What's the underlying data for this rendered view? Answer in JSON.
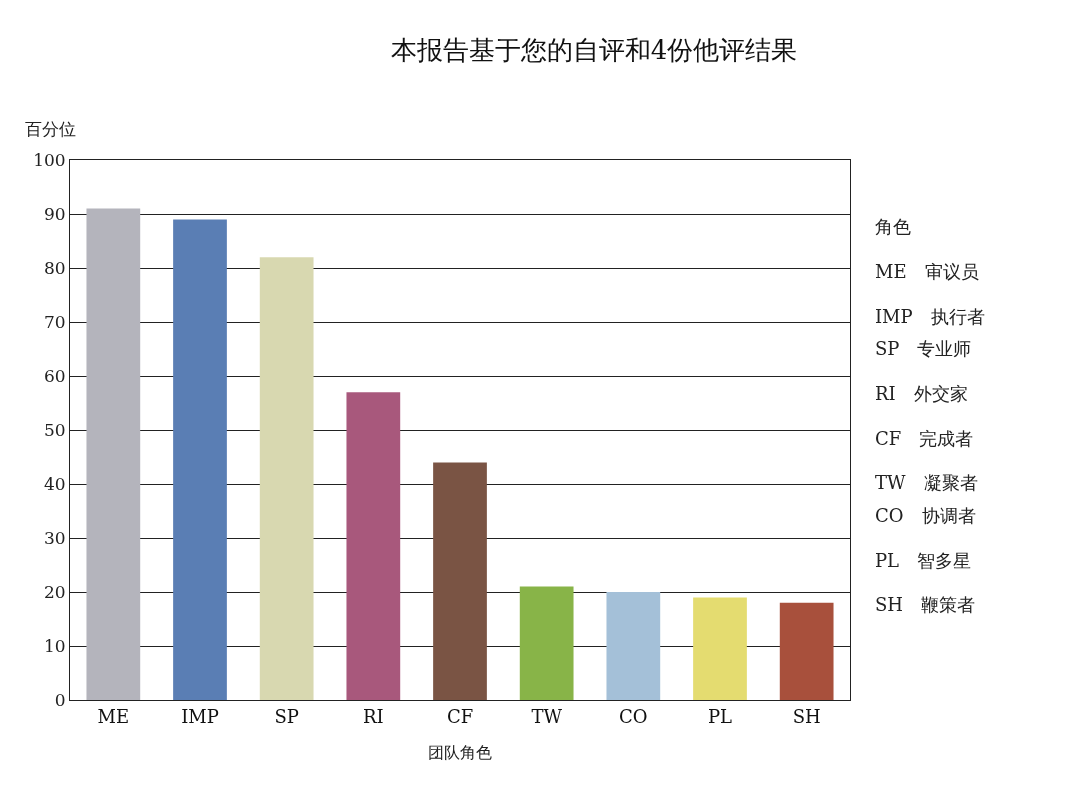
{
  "chart_data": {
    "type": "bar",
    "title": "本报告基于您的自评和4份他评结果",
    "xlabel": "团队角色",
    "ylabel": "百分位",
    "categories": [
      "ME",
      "IMP",
      "SP",
      "RI",
      "CF",
      "TW",
      "CO",
      "PL",
      "SH"
    ],
    "values": [
      91,
      89,
      82,
      57,
      44,
      21,
      20,
      19,
      18
    ],
    "colors": [
      "#b4b4bc",
      "#5a7eb4",
      "#d8d8b0",
      "#a8587c",
      "#7a5444",
      "#88b448",
      "#a4c0d8",
      "#e4dc70",
      "#a8503c"
    ],
    "ylim": [
      0,
      100
    ],
    "yticks": [
      0,
      10,
      20,
      30,
      40,
      50,
      60,
      70,
      80,
      90,
      100
    ],
    "grid": "y",
    "legend": false,
    "annotations": [
      "角色",
      "ME　审议员",
      "IMP　执行者",
      "SP　专业师",
      "RI　外交家",
      "CF　完成者",
      "TW　凝聚者",
      "CO　协调者",
      "PL　智多星",
      "SH　鞭策者"
    ]
  }
}
